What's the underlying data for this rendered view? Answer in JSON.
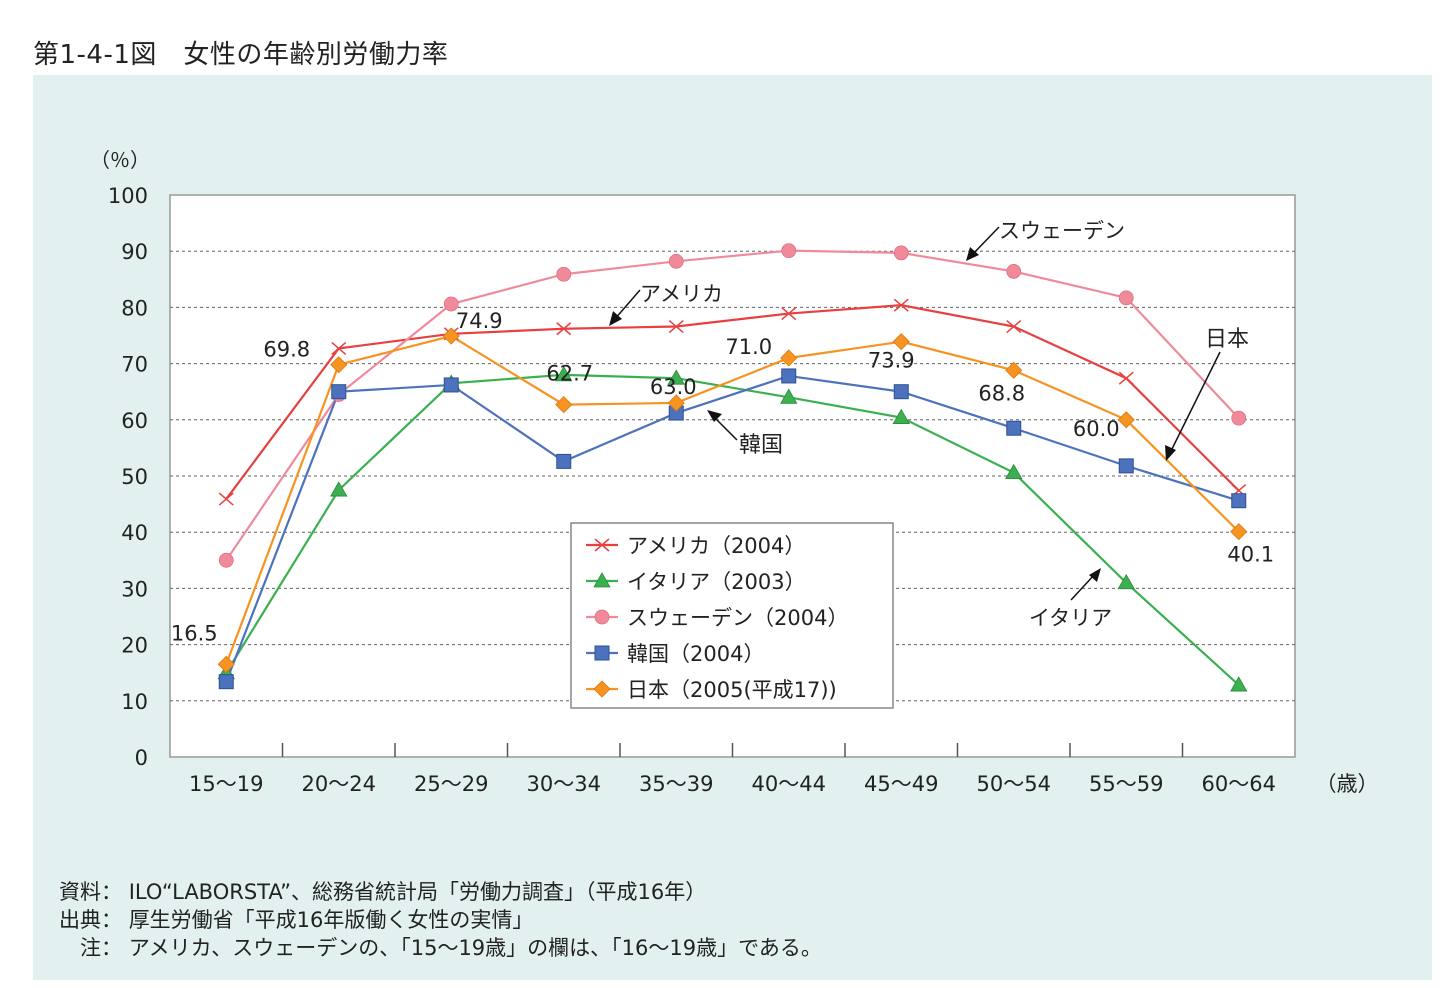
{
  "title": "第1-4-1図　女性の年齢別労働力率",
  "chart_data": {
    "type": "line",
    "y_unit": "（％）",
    "x_unit": "（歳）",
    "ylim": [
      0,
      100
    ],
    "yticks": [
      "0",
      "10",
      "20",
      "30",
      "40",
      "50",
      "60",
      "70",
      "80",
      "90",
      "100"
    ],
    "categories": [
      "15〜19",
      "20〜24",
      "25〜29",
      "30〜34",
      "35〜39",
      "40〜44",
      "45〜49",
      "50〜54",
      "55〜59",
      "60〜64"
    ],
    "grid": true,
    "legend_position": "bottom-center",
    "series": [
      {
        "key": "usa",
        "name": "アメリカ（2004）",
        "color": "#e84040",
        "marker": "x",
        "values": [
          45.9,
          72.7,
          75.3,
          76.2,
          76.6,
          78.9,
          80.4,
          76.6,
          67.4,
          47.4
        ]
      },
      {
        "key": "italy",
        "name": "イタリア（2003）",
        "color": "#3cb050",
        "marker": "triangle",
        "values": [
          15.0,
          47.5,
          66.5,
          68.0,
          67.4,
          64.0,
          60.4,
          50.6,
          31.0,
          12.8
        ]
      },
      {
        "key": "sweden",
        "name": "スウェーデン（2004）",
        "color": "#f08a9a",
        "marker": "circle",
        "values": [
          35.0,
          64.5,
          80.6,
          85.9,
          88.2,
          90.1,
          89.7,
          86.4,
          81.7,
          60.3
        ]
      },
      {
        "key": "korea",
        "name": "韓国（2004）",
        "color": "#4d72bd",
        "marker": "square",
        "values": [
          13.4,
          65.0,
          66.2,
          52.6,
          61.2,
          67.8,
          65.0,
          58.5,
          51.8,
          45.6
        ]
      },
      {
        "key": "japan",
        "name": "日本（2005(平成17))",
        "color": "#f79320",
        "marker": "diamond",
        "values": [
          16.5,
          69.8,
          74.9,
          62.7,
          63.0,
          71.0,
          73.9,
          68.8,
          60.0,
          40.1
        ]
      }
    ],
    "data_labels": [
      {
        "series": "japan",
        "index": 0,
        "text": "16.5"
      },
      {
        "series": "japan",
        "index": 1,
        "text": "69.8"
      },
      {
        "series": "japan",
        "index": 2,
        "text": "74.9"
      },
      {
        "series": "japan",
        "index": 3,
        "text": "62.7"
      },
      {
        "series": "japan",
        "index": 4,
        "text": "63.0"
      },
      {
        "series": "japan",
        "index": 5,
        "text": "71.0"
      },
      {
        "series": "japan",
        "index": 6,
        "text": "73.9"
      },
      {
        "series": "japan",
        "index": 7,
        "text": "68.8"
      },
      {
        "series": "japan",
        "index": 8,
        "text": "60.0"
      },
      {
        "series": "japan",
        "index": 9,
        "text": "40.1"
      }
    ],
    "annotations": {
      "sweden": "スウェーデン",
      "usa": "アメリカ",
      "japan": "日本",
      "korea": "韓国",
      "italy": "イタリア"
    }
  },
  "notes": [
    {
      "key": "資料：",
      "text": "ILO“LABORSTA”、総務省統計局「労働力調査」（平成16年）"
    },
    {
      "key": "出典：",
      "text": "厚生労働省「平成16年版働く女性の実情」"
    },
    {
      "key": "注：",
      "text": "アメリカ、スウェーデンの、「15〜19歳」の欄は、「16〜19歳」である。"
    }
  ]
}
